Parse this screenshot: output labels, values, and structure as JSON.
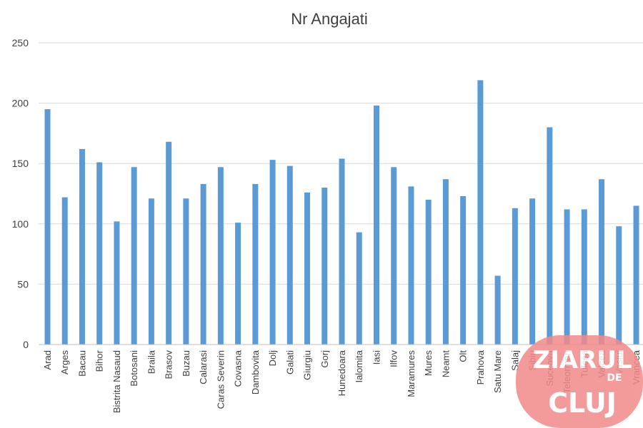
{
  "chart_data": {
    "type": "bar",
    "title": "Nr Angajati",
    "xlabel": "",
    "ylabel": "",
    "ylim": [
      0,
      250
    ],
    "yticks": [
      0,
      50,
      100,
      150,
      200,
      250
    ],
    "grid": true,
    "legend": "none",
    "bar_color": "#5b9bd5",
    "categories": [
      "Arad",
      "Arges",
      "Bacau",
      "Bihor",
      "Bistrita Nasaud",
      "Botosani",
      "Braila",
      "Brasov",
      "Buzau",
      "Calarasi",
      "Caras Severin",
      "Covasna",
      "Dambovita",
      "Dolj",
      "Galati",
      "Giurgiu",
      "Gorj",
      "Hunedoara",
      "Ialomita",
      "Iasi",
      "Ilfov",
      "Maramures",
      "Mures",
      "Neamt",
      "Olt",
      "Prahova",
      "Satu Mare",
      "Salaj",
      "Sibiu",
      "Suceava",
      "Teleorman",
      "Tulcea",
      "Valcea",
      "Vasiui",
      "Vrancea"
    ],
    "values": [
      195,
      122,
      162,
      151,
      102,
      147,
      121,
      168,
      121,
      133,
      147,
      101,
      133,
      153,
      148,
      126,
      130,
      154,
      93,
      198,
      147,
      131,
      120,
      137,
      123,
      219,
      57,
      113,
      121,
      180,
      112,
      112,
      137,
      98,
      115
    ]
  },
  "watermark": {
    "line1": "ZIARUL",
    "line2": "DE",
    "line3": "CLUJ",
    "color": "#f28a8a"
  }
}
